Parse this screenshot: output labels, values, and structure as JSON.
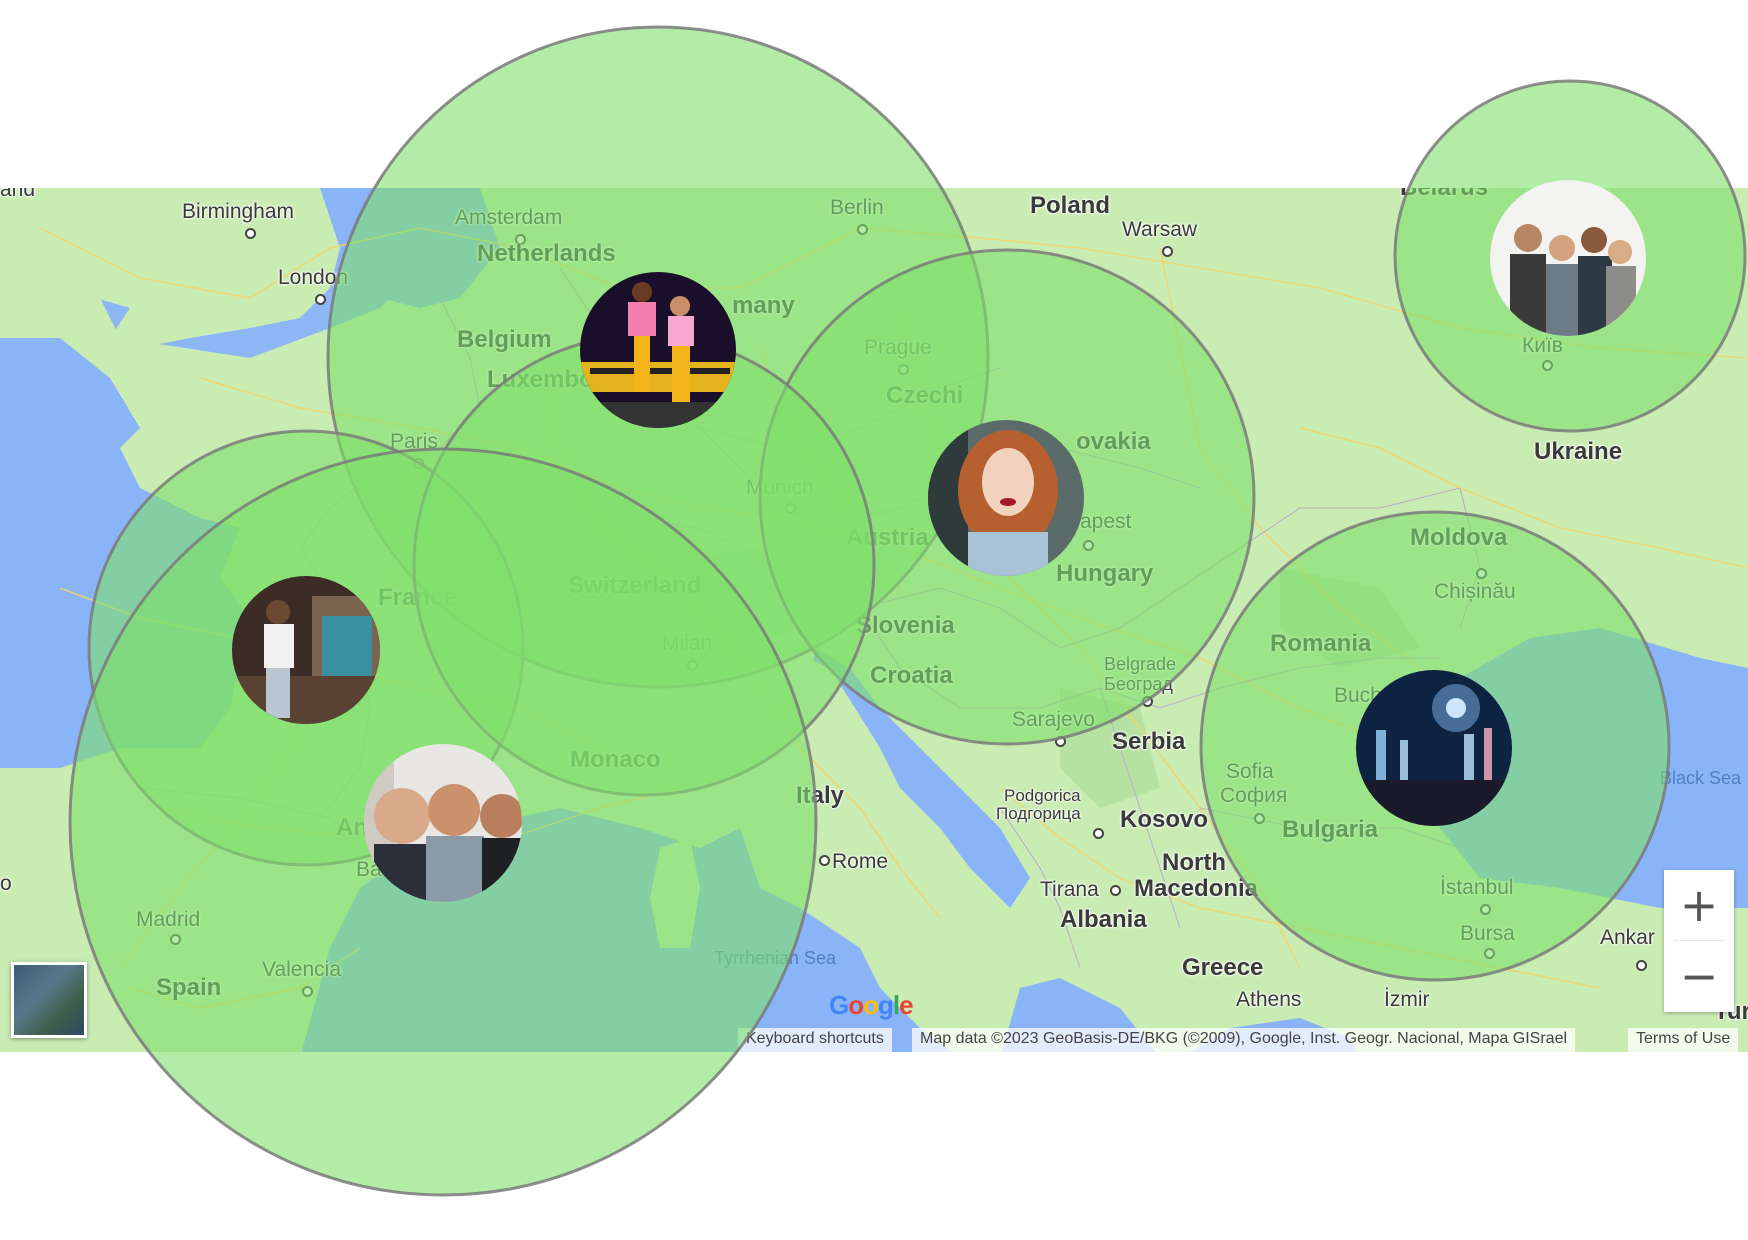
{
  "map": {
    "countries": [
      "Poland",
      "Netherlands",
      "Belgium",
      "Luxembourg",
      "Germany",
      "Czechia",
      "Slovakia",
      "Austria",
      "Hungary",
      "France",
      "Switzerland",
      "Slovenia",
      "Croatia",
      "Monaco",
      "Italy",
      "Serbia",
      "Romania",
      "Moldova",
      "Ukraine",
      "Bulgaria",
      "Kosovo",
      "North Macedonia",
      "Albania",
      "Greece",
      "Spain",
      "Andorra",
      "Belarus",
      "Turkey"
    ],
    "cities": {
      "birmingham": "Birmingham",
      "london": "London",
      "amsterdam": "Amsterdam",
      "berlin": "Berlin",
      "warsaw": "Warsaw",
      "prague": "Prague",
      "munich": "Munich",
      "paris": "Paris",
      "budapest": "apest",
      "milan": "Milan",
      "belgrade": "Belgrade",
      "belgrade_cyr": "Београд",
      "sarajevo": "Sarajevo",
      "podgorica": "Podgorica",
      "podgorica_cyr": "Подгорица",
      "tirana": "Tirana",
      "rome": "Rome",
      "madrid": "Madrid",
      "valencia": "Valencia",
      "barcelona": "Ba",
      "sofia": "Sofia",
      "sofia_cyr": "София",
      "bucharest": "Buch",
      "chisinau": "Chișinău",
      "kyiv": "Київ",
      "istanbul": "İstanbul",
      "bursa": "Bursa",
      "ankara": "Ankar",
      "izmir": "İzmir",
      "athens": "Athens"
    },
    "seas": {
      "tyrrhenian": "Tyrrhenian Sea",
      "black": "Black Sea"
    },
    "partials": {
      "top_left": "and",
      "germany": "many",
      "czechia": "Czechi",
      "slovakia": "ovakia",
      "austria": "Austria",
      "luxembourg": "Luxembo",
      "andorra": "An",
      "belarus": "Belarus",
      "turkey": "Turk",
      "spain_edge": "o"
    }
  },
  "controls": {
    "zoom_in": "+",
    "zoom_out": "−",
    "logo": "Google",
    "keyboard_shortcuts": "Keyboard shortcuts",
    "map_data": "Map data ©2023 GeoBasis-DE/BKG (©2009), Google, Inst. Geogr. Nacional, Mapa GISrael",
    "terms": "Terms of Use"
  },
  "colors": {
    "radius_fill": "#7edf6a",
    "radius_stroke": "#7a7a7a",
    "water": "#8ab4f8",
    "land": "#c9ecb3"
  },
  "markers": [
    {
      "name": "marker-netherlands-germany",
      "photo": "two-people-yellow-pants"
    },
    {
      "name": "marker-kyiv",
      "photo": "group-of-four-friends"
    },
    {
      "name": "marker-austria-slovakia",
      "photo": "red-haired-woman"
    },
    {
      "name": "marker-france",
      "photo": "man-in-white-hoodie"
    },
    {
      "name": "marker-spain-france",
      "photo": "three-men-selfie"
    },
    {
      "name": "marker-romania-bulgaria",
      "photo": "concert-crowd"
    }
  ]
}
